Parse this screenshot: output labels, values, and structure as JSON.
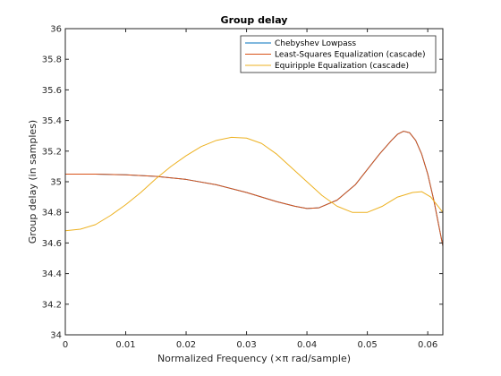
{
  "chart_data": {
    "type": "line",
    "title": "Group delay",
    "xlabel": "Normalized Frequency (×π rad/sample)",
    "ylabel": "Group delay (in samples)",
    "xlim": [
      0,
      0.0625
    ],
    "ylim": [
      34,
      36
    ],
    "xticks": [
      "0",
      "0.01",
      "0.02",
      "0.03",
      "0.04",
      "0.05",
      "0.06"
    ],
    "yticks": [
      "34",
      "34.2",
      "34.4",
      "34.6",
      "34.8",
      "35",
      "35.2",
      "35.4",
      "35.6",
      "35.8",
      "36"
    ],
    "grid": false,
    "legend_position": "top-right",
    "series": [
      {
        "name": "Chebyshev Lowpass",
        "color": "#0072bd",
        "x": [
          0,
          0.005,
          0.01,
          0.015,
          0.02,
          0.025,
          0.03,
          0.035,
          0.038,
          0.04,
          0.042,
          0.045,
          0.048,
          0.05,
          0.052,
          0.054,
          0.055,
          0.056,
          0.057,
          0.058,
          0.059,
          0.06,
          0.061,
          0.062,
          0.0625
        ],
        "y": [
          35.05,
          35.05,
          35.045,
          35.035,
          35.015,
          34.98,
          34.93,
          34.87,
          34.84,
          34.825,
          34.83,
          34.88,
          34.98,
          35.08,
          35.18,
          35.27,
          35.31,
          35.33,
          35.32,
          35.27,
          35.18,
          35.05,
          34.88,
          34.68,
          34.58
        ]
      },
      {
        "name": "Least-Squares Equalization (cascade)",
        "color": "#d95319",
        "x": [
          0,
          0.005,
          0.01,
          0.015,
          0.02,
          0.025,
          0.03,
          0.035,
          0.038,
          0.04,
          0.042,
          0.045,
          0.048,
          0.05,
          0.052,
          0.054,
          0.055,
          0.056,
          0.057,
          0.058,
          0.059,
          0.06,
          0.061,
          0.062,
          0.0625
        ],
        "y": [
          35.05,
          35.05,
          35.045,
          35.035,
          35.015,
          34.98,
          34.93,
          34.87,
          34.84,
          34.825,
          34.83,
          34.88,
          34.98,
          35.08,
          35.18,
          35.27,
          35.31,
          35.33,
          35.32,
          35.27,
          35.18,
          35.05,
          34.88,
          34.68,
          34.58
        ]
      },
      {
        "name": "Equiripple Equalization (cascade)",
        "color": "#edb120",
        "x": [
          0,
          0.0025,
          0.005,
          0.0075,
          0.01,
          0.0125,
          0.015,
          0.0175,
          0.02,
          0.0225,
          0.025,
          0.0275,
          0.03,
          0.0325,
          0.035,
          0.0375,
          0.04,
          0.0425,
          0.045,
          0.0475,
          0.05,
          0.0525,
          0.055,
          0.0575,
          0.059,
          0.0605,
          0.0625
        ],
        "y": [
          34.68,
          34.69,
          34.72,
          34.78,
          34.85,
          34.93,
          35.02,
          35.1,
          35.17,
          35.23,
          35.27,
          35.29,
          35.285,
          35.25,
          35.18,
          35.09,
          35.0,
          34.91,
          34.84,
          34.8,
          34.8,
          34.84,
          34.9,
          34.93,
          34.935,
          34.9,
          34.8
        ]
      }
    ]
  }
}
